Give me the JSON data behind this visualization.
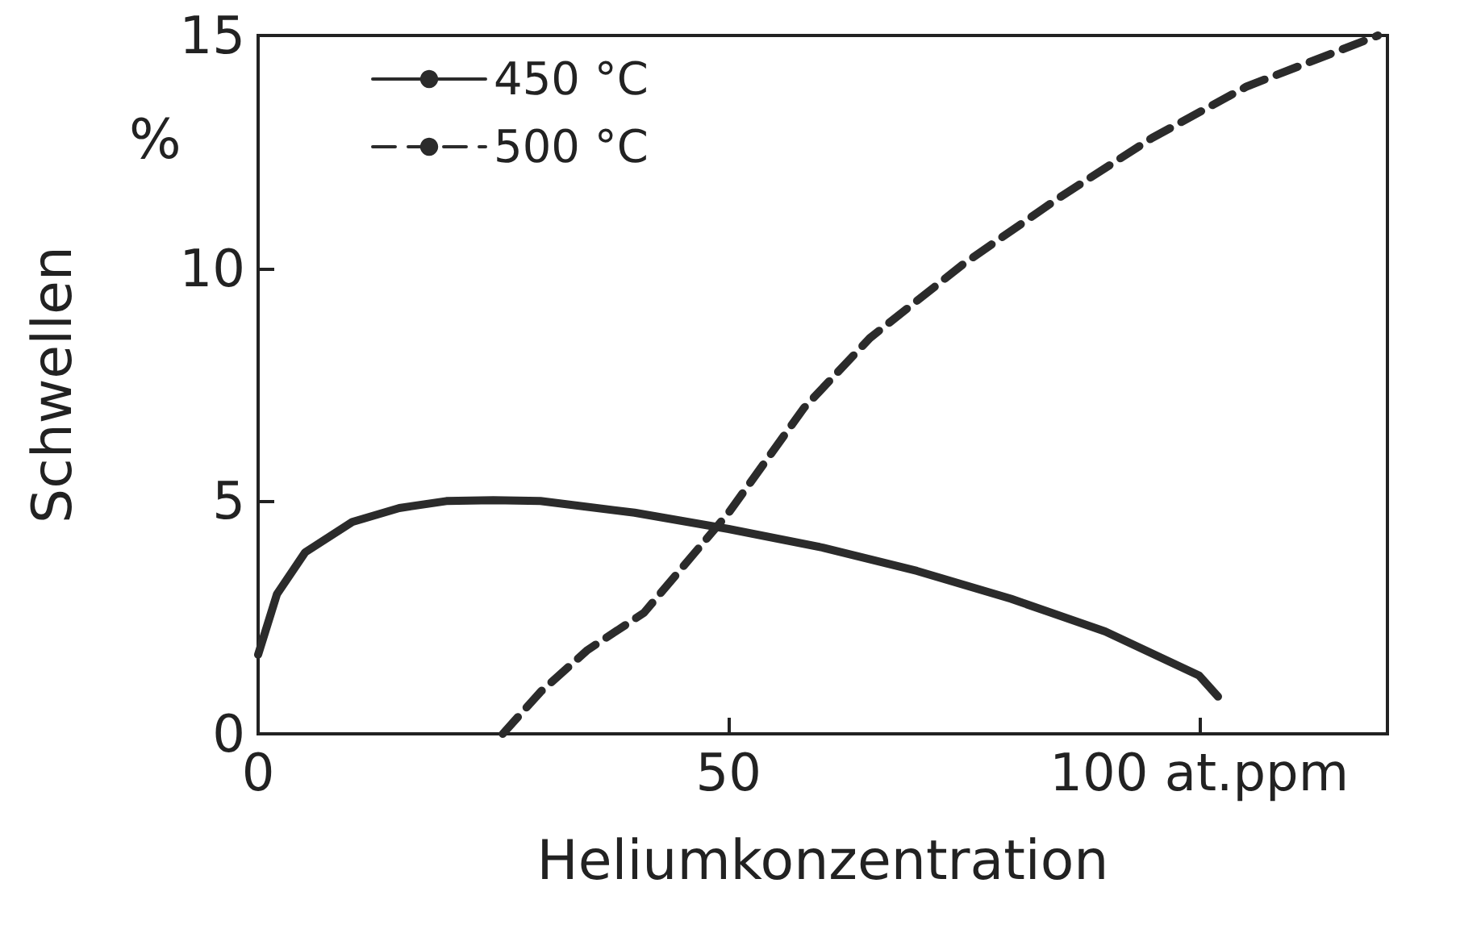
{
  "chart_data": {
    "type": "line",
    "xlabel": "Heliumkonzentration",
    "ylabel": "Schwellen",
    "annotations": [
      "%"
    ],
    "xlim": [
      0,
      120
    ],
    "ylim": [
      0,
      15
    ],
    "xticks": [
      0,
      50,
      {
        "value": 100,
        "label": "100 at.ppm"
      }
    ],
    "yticks": [
      0,
      5,
      10,
      15
    ],
    "grid": false,
    "legend": "top left",
    "marker": "none",
    "series": [
      {
        "name": "450 °C",
        "color": "#2b2b2b",
        "line_style": "solid",
        "x": [
          0,
          2,
          5,
          10,
          15,
          20,
          25,
          30,
          40,
          50,
          60,
          70,
          80,
          90,
          100,
          102
        ],
        "values": [
          1.7,
          3.0,
          3.9,
          4.55,
          4.85,
          5.0,
          5.02,
          5.0,
          4.75,
          4.4,
          4.0,
          3.5,
          2.9,
          2.2,
          1.25,
          0.8
        ]
      },
      {
        "name": "500 °C",
        "color": "#2b2b2b",
        "line_style": "dashed",
        "x": [
          26,
          30,
          35,
          41,
          50,
          58,
          65,
          75,
          85,
          95,
          105,
          119
        ],
        "values": [
          0,
          0.9,
          1.8,
          2.6,
          4.75,
          7.0,
          8.5,
          10.1,
          11.5,
          12.8,
          13.9,
          15
        ]
      }
    ]
  }
}
